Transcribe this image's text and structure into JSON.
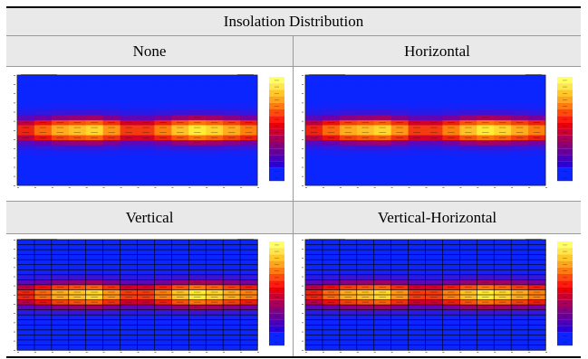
{
  "table": {
    "title": "Insolation  Distribution",
    "cells": [
      {
        "label": "None",
        "style": "flat"
      },
      {
        "label": "Horizontal",
        "style": "flat"
      },
      {
        "label": "Vertical",
        "style": "grid"
      },
      {
        "label": "Vertical-Horizontal",
        "style": "grid"
      }
    ]
  },
  "colors": {
    "header_bg": "#e9e9e9",
    "rule": "#000000",
    "heatmap_low": "#0b25ff",
    "heatmap_high": "#ffff33",
    "legend": [
      "#ffff66",
      "#ffe64d",
      "#ffc828",
      "#ffa51a",
      "#ff7a12",
      "#ff4a0d",
      "#ff1a0a",
      "#e8000f",
      "#cc0033",
      "#a80058",
      "#88007a",
      "#6a009a",
      "#4a00bb",
      "#2a00dd",
      "#0b25ff",
      "#0b25ff"
    ]
  },
  "icons": [
    "heatmap-legend"
  ]
}
